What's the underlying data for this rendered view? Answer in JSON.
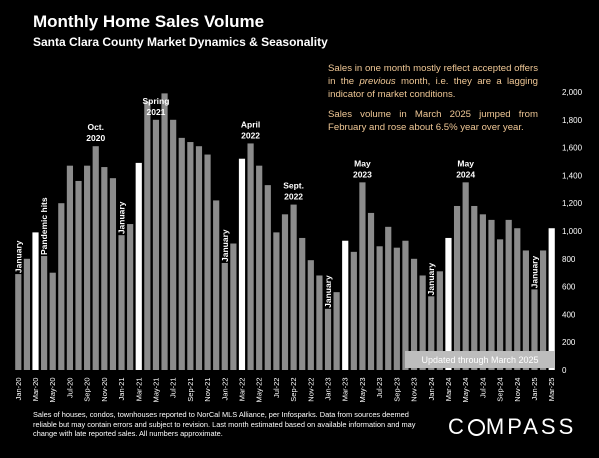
{
  "header": {
    "title": "Monthly Home Sales Volume",
    "subtitle": "Santa Clara County Market Dynamics & Seasonality"
  },
  "notes": {
    "note1_pre": "Sales in one month mostly reflect accepted offers in the ",
    "note1_em": "previous",
    "note1_post": " month, i.e. they are a lagging indicator of market conditions.",
    "note2": "Sales volume in March 2025 jumped from February and rose about 6.5% year over year."
  },
  "footer": {
    "text": "Sales of houses, condos, townhouses reported to NorCal MLS Alliance, per Infosparks. Data from sources deemed reliable but may contain errors and subject to revision. Last month estimated based on available information and may change with late reported sales. All numbers approximate."
  },
  "logo": {
    "pre": "C",
    "post": "MPASS"
  },
  "colors": {
    "background": "#000000",
    "bar": "#8c8c8c",
    "highlight": "#ffffff",
    "note": "#f0c896"
  },
  "chart_data": {
    "type": "bar",
    "title": "Monthly Home Sales Volume",
    "subtitle": "Santa Clara County Market Dynamics & Seasonality",
    "ylim": [
      0,
      2000
    ],
    "yticks": [
      "0",
      "200",
      "400",
      "600",
      "800",
      "1,000",
      "1,200",
      "1,400",
      "1,600",
      "1,800",
      "2,000"
    ],
    "y_axis_side": "right",
    "grid": false,
    "categories": [
      "Jan-20",
      "Feb-20",
      "Mar-20",
      "Apr-20",
      "May-20",
      "Jun-20",
      "Jul-20",
      "Aug-20",
      "Sep-20",
      "Oct-20",
      "Nov-20",
      "Dec-20",
      "Jan-21",
      "Feb-21",
      "Mar-21",
      "Apr-21",
      "May-21",
      "Jun-21",
      "Jul-21",
      "Aug-21",
      "Sep-21",
      "Oct-21",
      "Nov-21",
      "Dec-21",
      "Jan-22",
      "Feb-22",
      "Mar-22",
      "Apr-22",
      "May-22",
      "Jun-22",
      "Jul-22",
      "Aug-22",
      "Sep-22",
      "Oct-22",
      "Nov-22",
      "Dec-22",
      "Jan-23",
      "Feb-23",
      "Mar-23",
      "Apr-23",
      "May-23",
      "Jun-23",
      "Jul-23",
      "Aug-23",
      "Sep-23",
      "Oct-23",
      "Nov-23",
      "Dec-23",
      "Jan-24",
      "Feb-24",
      "Mar-24",
      "Apr-24",
      "May-24",
      "Jun-24",
      "Jul-24",
      "Aug-24",
      "Sep-24",
      "Oct-24",
      "Nov-24",
      "Dec-24",
      "Jan-25",
      "Feb-25",
      "Mar-25"
    ],
    "x_tick_labels": [
      "Jan-20",
      "Mar-20",
      "May-20",
      "Jul-20",
      "Sep-20",
      "Nov-20",
      "Jan-21",
      "Mar-21",
      "May-21",
      "Jul-21",
      "Sep-21",
      "Nov-21",
      "Jan-22",
      "Mar-22",
      "May-22",
      "Jul-22",
      "Sep-22",
      "Nov-22",
      "Jan-23",
      "Mar-23",
      "May-23",
      "Jul-23",
      "Sep-23",
      "Nov-23",
      "Jan-24",
      "Mar-24",
      "May-24",
      "Jul-24",
      "Sep-24",
      "Nov-24",
      "Jan-25",
      "Mar-25"
    ],
    "values": [
      690,
      800,
      990,
      820,
      700,
      1200,
      1470,
      1360,
      1470,
      1610,
      1460,
      1380,
      970,
      1050,
      1490,
      1930,
      1800,
      1990,
      1800,
      1670,
      1640,
      1610,
      1550,
      1220,
      770,
      910,
      1520,
      1630,
      1470,
      1330,
      990,
      1120,
      1190,
      950,
      790,
      680,
      440,
      560,
      930,
      850,
      1350,
      1130,
      890,
      1030,
      880,
      930,
      800,
      680,
      530,
      710,
      950,
      1180,
      1350,
      1180,
      1120,
      1080,
      940,
      1080,
      1020,
      860,
      580,
      860,
      1020
    ],
    "highlight_categories": [
      "Mar-20",
      "Mar-21",
      "Mar-22",
      "Mar-23",
      "Mar-24",
      "Mar-25"
    ],
    "annotations": [
      {
        "text": "January",
        "category": "Jan-20",
        "orientation": "vertical"
      },
      {
        "text": "Pandemic hits",
        "category": "Apr-20",
        "orientation": "vertical"
      },
      {
        "text": "Oct.",
        "text2": "2020",
        "category": "Oct-20",
        "orientation": "horizontal"
      },
      {
        "text": "January",
        "category": "Jan-21",
        "orientation": "vertical"
      },
      {
        "text": "Spring",
        "text2": "2021",
        "category": "May-21",
        "orientation": "horizontal"
      },
      {
        "text": "January",
        "category": "Jan-22",
        "orientation": "vertical"
      },
      {
        "text": "April",
        "text2": "2022",
        "category": "Apr-22",
        "orientation": "horizontal"
      },
      {
        "text": "Sept.",
        "text2": "2022",
        "category": "Sep-22",
        "orientation": "horizontal"
      },
      {
        "text": "January",
        "category": "Jan-23",
        "orientation": "vertical"
      },
      {
        "text": "May",
        "text2": "2023",
        "category": "May-23",
        "orientation": "horizontal"
      },
      {
        "text": "January",
        "category": "Jan-24",
        "orientation": "vertical"
      },
      {
        "text": "May",
        "text2": "2024",
        "category": "May-24",
        "orientation": "horizontal"
      },
      {
        "text": "January",
        "category": "Jan-25",
        "orientation": "vertical"
      }
    ],
    "banner": "Updated through March 2025"
  }
}
